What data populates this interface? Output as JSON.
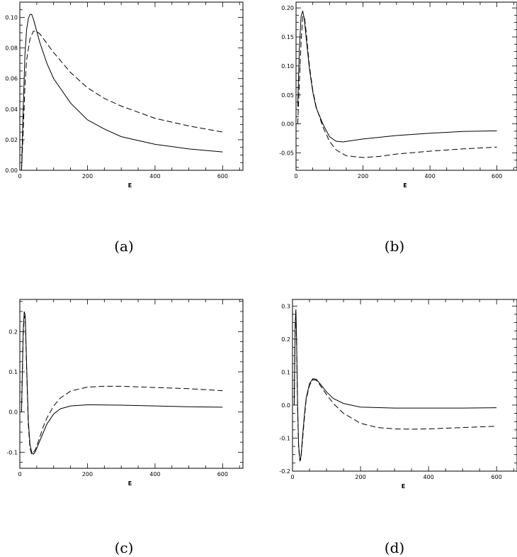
{
  "chart_data": [
    {
      "type": "line",
      "caption": "(a)",
      "xlabel": "E",
      "xlim": [
        0,
        660
      ],
      "ylim": [
        0.0,
        0.11
      ],
      "xticks": [
        0,
        200,
        400,
        600
      ],
      "xtick_labels": [
        "0",
        "200",
        "400",
        "600"
      ],
      "yticks": [
        0.0,
        0.02,
        0.04,
        0.06,
        0.08,
        0.1
      ],
      "ytick_labels": [
        "0.00",
        "0.02",
        "0.04",
        "0.06",
        "0.08",
        "0.10"
      ],
      "series": [
        {
          "style": "solid",
          "x": [
            5,
            10,
            15,
            20,
            25,
            30,
            35,
            40,
            50,
            60,
            80,
            100,
            150,
            200,
            250,
            300,
            400,
            500,
            600
          ],
          "y": [
            0.0,
            0.04,
            0.075,
            0.092,
            0.099,
            0.102,
            0.102,
            0.099,
            0.091,
            0.083,
            0.07,
            0.06,
            0.044,
            0.033,
            0.027,
            0.022,
            0.017,
            0.014,
            0.012
          ]
        },
        {
          "style": "dashed",
          "x": [
            5,
            10,
            15,
            20,
            30,
            40,
            50,
            60,
            80,
            100,
            150,
            200,
            250,
            300,
            400,
            500,
            600
          ],
          "y": [
            0.0,
            0.025,
            0.055,
            0.072,
            0.086,
            0.091,
            0.091,
            0.089,
            0.083,
            0.077,
            0.064,
            0.054,
            0.047,
            0.042,
            0.034,
            0.029,
            0.025
          ]
        }
      ]
    },
    {
      "type": "line",
      "caption": "(b)",
      "xlabel": "E",
      "xlim": [
        0,
        660
      ],
      "ylim": [
        -0.08,
        0.21
      ],
      "xticks": [
        0,
        200,
        400,
        600
      ],
      "xtick_labels": [
        "0",
        "200",
        "400",
        "600"
      ],
      "yticks": [
        -0.05,
        0.0,
        0.05,
        0.1,
        0.15,
        0.2
      ],
      "ytick_labels": [
        "-0.05",
        "0.00",
        "0.05",
        "0.10",
        "0.15",
        "0.20"
      ],
      "series": [
        {
          "style": "solid",
          "x": [
            5,
            10,
            15,
            20,
            25,
            30,
            40,
            50,
            60,
            80,
            100,
            120,
            140,
            200,
            300,
            400,
            500,
            600
          ],
          "y": [
            0.03,
            0.13,
            0.185,
            0.195,
            0.18,
            0.15,
            0.095,
            0.055,
            0.028,
            0.0,
            -0.022,
            -0.03,
            -0.031,
            -0.026,
            -0.02,
            -0.016,
            -0.013,
            -0.012
          ]
        },
        {
          "style": "dashed",
          "x": [
            5,
            10,
            15,
            20,
            25,
            30,
            40,
            50,
            60,
            80,
            100,
            120,
            150,
            200,
            250,
            300,
            400,
            500,
            600
          ],
          "y": [
            0.0,
            0.07,
            0.14,
            0.185,
            0.185,
            0.16,
            0.1,
            0.058,
            0.03,
            -0.005,
            -0.03,
            -0.045,
            -0.055,
            -0.058,
            -0.056,
            -0.052,
            -0.047,
            -0.043,
            -0.04
          ]
        }
      ]
    },
    {
      "type": "line",
      "caption": "(c)",
      "xlabel": "E",
      "xlim": [
        0,
        660
      ],
      "ylim": [
        -0.14,
        0.28
      ],
      "xticks": [
        0,
        200,
        400,
        600
      ],
      "xtick_labels": [
        "0",
        "200",
        "400",
        "600"
      ],
      "yticks": [
        -0.1,
        0.0,
        0.1,
        0.2
      ],
      "ytick_labels": [
        "-0.1",
        "0.0",
        "0.1",
        "0.2"
      ],
      "series": [
        {
          "style": "solid",
          "x": [
            5,
            10,
            13,
            16,
            20,
            25,
            30,
            35,
            40,
            45,
            50,
            60,
            70,
            80,
            100,
            120,
            150,
            200,
            300,
            400,
            500,
            600
          ],
          "y": [
            0.0,
            0.2,
            0.25,
            0.24,
            0.12,
            -0.02,
            -0.08,
            -0.1,
            -0.105,
            -0.1,
            -0.09,
            -0.07,
            -0.05,
            -0.03,
            -0.005,
            0.008,
            0.015,
            0.018,
            0.017,
            0.015,
            0.013,
            0.012
          ]
        },
        {
          "style": "dashed",
          "x": [
            5,
            10,
            13,
            16,
            20,
            25,
            30,
            35,
            40,
            45,
            50,
            60,
            70,
            80,
            100,
            120,
            150,
            200,
            250,
            300,
            400,
            500,
            600
          ],
          "y": [
            0.0,
            0.19,
            0.24,
            0.23,
            0.11,
            -0.03,
            -0.09,
            -0.105,
            -0.1,
            -0.095,
            -0.085,
            -0.06,
            -0.035,
            -0.015,
            0.015,
            0.035,
            0.052,
            0.062,
            0.064,
            0.064,
            0.061,
            0.058,
            0.053
          ]
        }
      ]
    },
    {
      "type": "line",
      "caption": "(d)",
      "xlabel": "E",
      "xlim": [
        0,
        660
      ],
      "ylim": [
        -0.2,
        0.32
      ],
      "xticks": [
        0,
        200,
        400,
        600
      ],
      "xtick_labels": [
        "0",
        "200",
        "400",
        "600"
      ],
      "yticks": [
        -0.2,
        -0.1,
        0.0,
        0.1,
        0.2,
        0.3
      ],
      "ytick_labels": [
        "-0.2",
        "-0.1",
        "0.0",
        "0.1",
        "0.2",
        "0.3"
      ],
      "series": [
        {
          "style": "solid",
          "x": [
            5,
            8,
            10,
            12,
            15,
            18,
            22,
            25,
            30,
            35,
            40,
            50,
            60,
            70,
            80,
            100,
            120,
            150,
            200,
            300,
            400,
            500,
            600
          ],
          "y": [
            0.0,
            0.25,
            0.29,
            0.2,
            0.0,
            -0.12,
            -0.17,
            -0.155,
            -0.09,
            -0.03,
            0.02,
            0.065,
            0.08,
            0.078,
            0.066,
            0.04,
            0.02,
            0.005,
            -0.006,
            -0.009,
            -0.009,
            -0.009,
            -0.008
          ]
        },
        {
          "style": "dashed",
          "x": [
            5,
            8,
            10,
            12,
            15,
            18,
            22,
            25,
            30,
            35,
            40,
            50,
            60,
            70,
            80,
            100,
            120,
            150,
            200,
            250,
            300,
            350,
            400,
            500,
            600
          ],
          "y": [
            0.0,
            0.24,
            0.28,
            0.19,
            -0.01,
            -0.13,
            -0.17,
            -0.16,
            -0.1,
            -0.04,
            0.015,
            0.06,
            0.077,
            0.075,
            0.062,
            0.032,
            0.005,
            -0.025,
            -0.055,
            -0.068,
            -0.072,
            -0.073,
            -0.072,
            -0.068,
            -0.064
          ]
        }
      ]
    }
  ]
}
